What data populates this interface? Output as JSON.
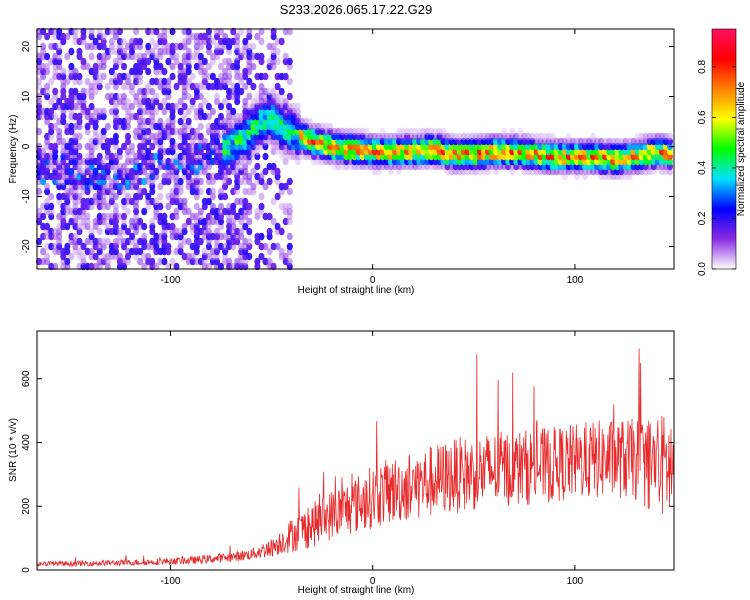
{
  "figure": {
    "title": "S233.2026.065.17.22.G29"
  },
  "chart_data": [
    {
      "type": "heatmap",
      "xlabel": "Height of straight line (km)",
      "ylabel": "Frequency (Hz)",
      "xlim": [
        -166,
        149
      ],
      "ylim": [
        -24.5,
        23.5
      ],
      "xticks": [
        -100,
        0,
        100
      ],
      "yticks": [
        -20,
        -10,
        0,
        10,
        20
      ],
      "ridge": {
        "x": [
          -166,
          -150,
          -130,
          -110,
          -95,
          -80,
          -70,
          -60,
          -55,
          -50,
          -45,
          -40,
          -30,
          -20,
          -10,
          0,
          10,
          20,
          30,
          40,
          50,
          60,
          70,
          80,
          90,
          100,
          110,
          120,
          130,
          140,
          149
        ],
        "freq": [
          -4,
          -5,
          -6,
          -4.5,
          -3,
          -2,
          0,
          3,
          5,
          6,
          4,
          3,
          1,
          0,
          -0.5,
          -1,
          -1,
          -1,
          -0.5,
          -1.5,
          -1.5,
          -1,
          -1,
          -1.5,
          -2,
          -2,
          -2,
          -2.5,
          -2,
          -1,
          -1.5
        ]
      },
      "colorbar": {
        "label": "Normalized spectral amplitude",
        "range": [
          0.0,
          0.95
        ],
        "ticks": [
          0.0,
          0.2,
          0.4,
          0.6,
          0.8
        ],
        "tick_labels": [
          "0.0",
          "0.2",
          "0.4",
          "0.6",
          "0.8"
        ],
        "colormap": [
          "#ffffff",
          "#8a2be2",
          "#0000ff",
          "#00e0ff",
          "#00ff00",
          "#ffff00",
          "#ff8000",
          "#ff0000",
          "#ff1060"
        ]
      }
    },
    {
      "type": "line",
      "xlabel": "Height of straight line (km)",
      "ylabel": "SNR (10 * v/v)",
      "xlim": [
        -166,
        149
      ],
      "ylim": [
        0,
        750
      ],
      "xticks": [
        -100,
        0,
        100
      ],
      "yticks": [
        0,
        200,
        400,
        600
      ],
      "series": [
        {
          "name": "SNR",
          "color": "#e8292a",
          "x": [
            -166,
            -150,
            -130,
            -110,
            -90,
            -80,
            -70,
            -60,
            -50,
            -45,
            -40,
            -30,
            -20,
            -10,
            0,
            10,
            20,
            30,
            40,
            50,
            60,
            70,
            80,
            90,
            100,
            110,
            120,
            130,
            140,
            149
          ],
          "mean": [
            20,
            20,
            22,
            25,
            30,
            35,
            40,
            50,
            70,
            90,
            110,
            140,
            175,
            200,
            230,
            250,
            265,
            280,
            295,
            305,
            315,
            320,
            325,
            330,
            340,
            345,
            350,
            345,
            330,
            320
          ],
          "spread": [
            8,
            8,
            9,
            10,
            12,
            14,
            15,
            18,
            30,
            40,
            55,
            70,
            80,
            90,
            100,
            105,
            110,
            115,
            118,
            120,
            120,
            120,
            120,
            120,
            120,
            125,
            125,
            130,
            160,
            180
          ]
        }
      ]
    }
  ]
}
